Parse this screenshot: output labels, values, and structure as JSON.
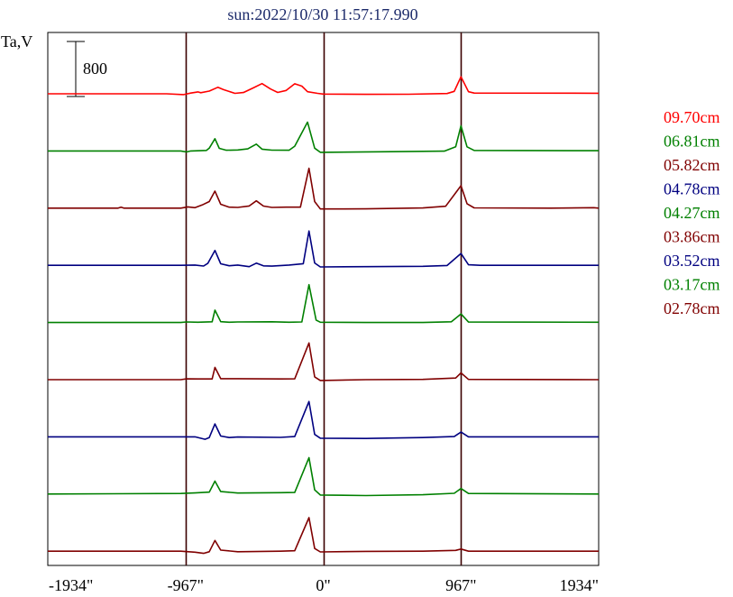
{
  "chart_data": {
    "type": "line",
    "title": "sun:2022/10/30 11:57:17.990",
    "ylabel": "Ta,V",
    "scale_bar_label": "800",
    "x_ticks": [
      "-1934\"",
      "-967\"",
      "0\"",
      "967\"",
      "1934\""
    ],
    "x_tick_values": [
      -1934,
      -967,
      0,
      967,
      1934
    ],
    "xlim": [
      -1934,
      1934
    ],
    "vlines": [
      -967,
      0,
      967
    ],
    "series": [
      {
        "name": "09.70cm",
        "color": "#ff0000",
        "baseline": 0,
        "points": [
          [
            -1934,
            0
          ],
          [
            -1100,
            0
          ],
          [
            -980,
            -12
          ],
          [
            -930,
            10
          ],
          [
            -880,
            28
          ],
          [
            -860,
            16
          ],
          [
            -800,
            40
          ],
          [
            -740,
            94
          ],
          [
            -700,
            60
          ],
          [
            -620,
            6
          ],
          [
            -560,
            18
          ],
          [
            -490,
            86
          ],
          [
            -430,
            148
          ],
          [
            -370,
            70
          ],
          [
            -320,
            20
          ],
          [
            -260,
            48
          ],
          [
            -200,
            146
          ],
          [
            -150,
            112
          ],
          [
            -110,
            30
          ],
          [
            -40,
            6
          ],
          [
            0,
            -4
          ],
          [
            300,
            -8
          ],
          [
            600,
            -6
          ],
          [
            870,
            4
          ],
          [
            920,
            36
          ],
          [
            967,
            248
          ],
          [
            1020,
            30
          ],
          [
            1060,
            10
          ],
          [
            1934,
            8
          ]
        ]
      },
      {
        "name": "06.81cm",
        "color": "#008000",
        "baseline": -1,
        "points": [
          [
            -1934,
            0
          ],
          [
            -1000,
            0
          ],
          [
            -960,
            -14
          ],
          [
            -930,
            0
          ],
          [
            -820,
            8
          ],
          [
            -800,
            40
          ],
          [
            -760,
            178
          ],
          [
            -730,
            38
          ],
          [
            -680,
            10
          ],
          [
            -600,
            14
          ],
          [
            -530,
            30
          ],
          [
            -470,
            100
          ],
          [
            -430,
            26
          ],
          [
            -360,
            12
          ],
          [
            -240,
            10
          ],
          [
            -200,
            70
          ],
          [
            -110,
            420
          ],
          [
            -60,
            40
          ],
          [
            -20,
            -20
          ],
          [
            400,
            -12
          ],
          [
            850,
            -2
          ],
          [
            930,
            60
          ],
          [
            967,
            366
          ],
          [
            1010,
            60
          ],
          [
            1060,
            8
          ],
          [
            1934,
            4
          ]
        ]
      },
      {
        "name": "05.82cm",
        "color": "#800000",
        "baseline": -2,
        "points": [
          [
            -1934,
            0
          ],
          [
            -1440,
            0
          ],
          [
            -1420,
            14
          ],
          [
            -1400,
            0
          ],
          [
            -1000,
            0
          ],
          [
            -950,
            18
          ],
          [
            -900,
            6
          ],
          [
            -850,
            46
          ],
          [
            -800,
            96
          ],
          [
            -760,
            248
          ],
          [
            -720,
            56
          ],
          [
            -660,
            14
          ],
          [
            -600,
            10
          ],
          [
            -520,
            32
          ],
          [
            -470,
            106
          ],
          [
            -420,
            30
          ],
          [
            -360,
            10
          ],
          [
            -260,
            14
          ],
          [
            -160,
            14
          ],
          [
            -100,
            580
          ],
          [
            -60,
            96
          ],
          [
            -20,
            -12
          ],
          [
            300,
            -10
          ],
          [
            700,
            2
          ],
          [
            860,
            28
          ],
          [
            967,
            326
          ],
          [
            1010,
            64
          ],
          [
            1060,
            4
          ],
          [
            1600,
            0
          ],
          [
            1900,
            6
          ],
          [
            1934,
            0
          ]
        ]
      },
      {
        "name": "04.78cm",
        "color": "#000080",
        "baseline": -3,
        "points": [
          [
            -1934,
            0
          ],
          [
            -1000,
            0
          ],
          [
            -900,
            4
          ],
          [
            -840,
            -10
          ],
          [
            -810,
            30
          ],
          [
            -760,
            216
          ],
          [
            -720,
            22
          ],
          [
            -660,
            -6
          ],
          [
            -600,
            4
          ],
          [
            -520,
            -20
          ],
          [
            -470,
            32
          ],
          [
            -420,
            -8
          ],
          [
            -360,
            -12
          ],
          [
            -240,
            4
          ],
          [
            -140,
            24
          ],
          [
            -100,
            498
          ],
          [
            -60,
            34
          ],
          [
            -20,
            -24
          ],
          [
            300,
            -20
          ],
          [
            700,
            -14
          ],
          [
            870,
            -2
          ],
          [
            967,
            172
          ],
          [
            1020,
            8
          ],
          [
            1100,
            0
          ],
          [
            1934,
            0
          ]
        ]
      },
      {
        "name": "04.27cm",
        "color": "#008000",
        "baseline": -4,
        "points": [
          [
            -1934,
            0
          ],
          [
            -1000,
            0
          ],
          [
            -960,
            8
          ],
          [
            -880,
            4
          ],
          [
            -780,
            10
          ],
          [
            -760,
            180
          ],
          [
            -720,
            12
          ],
          [
            -660,
            4
          ],
          [
            -600,
            8
          ],
          [
            -360,
            10
          ],
          [
            -240,
            4
          ],
          [
            -150,
            8
          ],
          [
            -100,
            550
          ],
          [
            -50,
            36
          ],
          [
            -20,
            4
          ],
          [
            300,
            0
          ],
          [
            700,
            0
          ],
          [
            900,
            10
          ],
          [
            967,
            124
          ],
          [
            1020,
            6
          ],
          [
            1934,
            4
          ]
        ]
      },
      {
        "name": "03.86cm",
        "color": "#800000",
        "baseline": -5,
        "points": [
          [
            -1934,
            0
          ],
          [
            -1000,
            0
          ],
          [
            -960,
            12
          ],
          [
            -880,
            10
          ],
          [
            -780,
            10
          ],
          [
            -760,
            178
          ],
          [
            -720,
            14
          ],
          [
            -600,
            14
          ],
          [
            -300,
            10
          ],
          [
            -200,
            12
          ],
          [
            -100,
            534
          ],
          [
            -60,
            40
          ],
          [
            -20,
            -12
          ],
          [
            300,
            0
          ],
          [
            700,
            4
          ],
          [
            930,
            24
          ],
          [
            967,
            98
          ],
          [
            1020,
            4
          ],
          [
            1934,
            0
          ]
        ]
      },
      {
        "name": "03.52cm",
        "color": "#000080",
        "baseline": -6,
        "points": [
          [
            -1934,
            0
          ],
          [
            -1000,
            0
          ],
          [
            -900,
            0
          ],
          [
            -830,
            -36
          ],
          [
            -800,
            -10
          ],
          [
            -760,
            188
          ],
          [
            -720,
            12
          ],
          [
            -660,
            -10
          ],
          [
            -600,
            -2
          ],
          [
            -300,
            -8
          ],
          [
            -200,
            4
          ],
          [
            -100,
            514
          ],
          [
            -60,
            36
          ],
          [
            -20,
            -20
          ],
          [
            300,
            -24
          ],
          [
            700,
            -10
          ],
          [
            920,
            4
          ],
          [
            967,
            70
          ],
          [
            1020,
            0
          ],
          [
            1934,
            0
          ]
        ]
      },
      {
        "name": "03.17cm",
        "color": "#008000",
        "baseline": -7,
        "points": [
          [
            -1934,
            0
          ],
          [
            -1000,
            8
          ],
          [
            -900,
            16
          ],
          [
            -800,
            28
          ],
          [
            -760,
            188
          ],
          [
            -720,
            36
          ],
          [
            -600,
            14
          ],
          [
            -300,
            20
          ],
          [
            -200,
            22
          ],
          [
            -100,
            528
          ],
          [
            -60,
            60
          ],
          [
            -20,
            -14
          ],
          [
            300,
            -22
          ],
          [
            700,
            -10
          ],
          [
            920,
            10
          ],
          [
            967,
            80
          ],
          [
            1020,
            8
          ],
          [
            1934,
            0
          ]
        ]
      },
      {
        "name": "02.78cm",
        "color": "#800000",
        "baseline": -8,
        "points": [
          [
            -1934,
            0
          ],
          [
            -1000,
            0
          ],
          [
            -900,
            -14
          ],
          [
            -840,
            -32
          ],
          [
            -800,
            -8
          ],
          [
            -760,
            156
          ],
          [
            -720,
            16
          ],
          [
            -600,
            -8
          ],
          [
            -300,
            0
          ],
          [
            -200,
            6
          ],
          [
            -100,
            488
          ],
          [
            -60,
            40
          ],
          [
            -20,
            -10
          ],
          [
            300,
            -2
          ],
          [
            700,
            0
          ],
          [
            930,
            12
          ],
          [
            967,
            32
          ],
          [
            1020,
            0
          ],
          [
            1934,
            0
          ]
        ]
      }
    ]
  }
}
